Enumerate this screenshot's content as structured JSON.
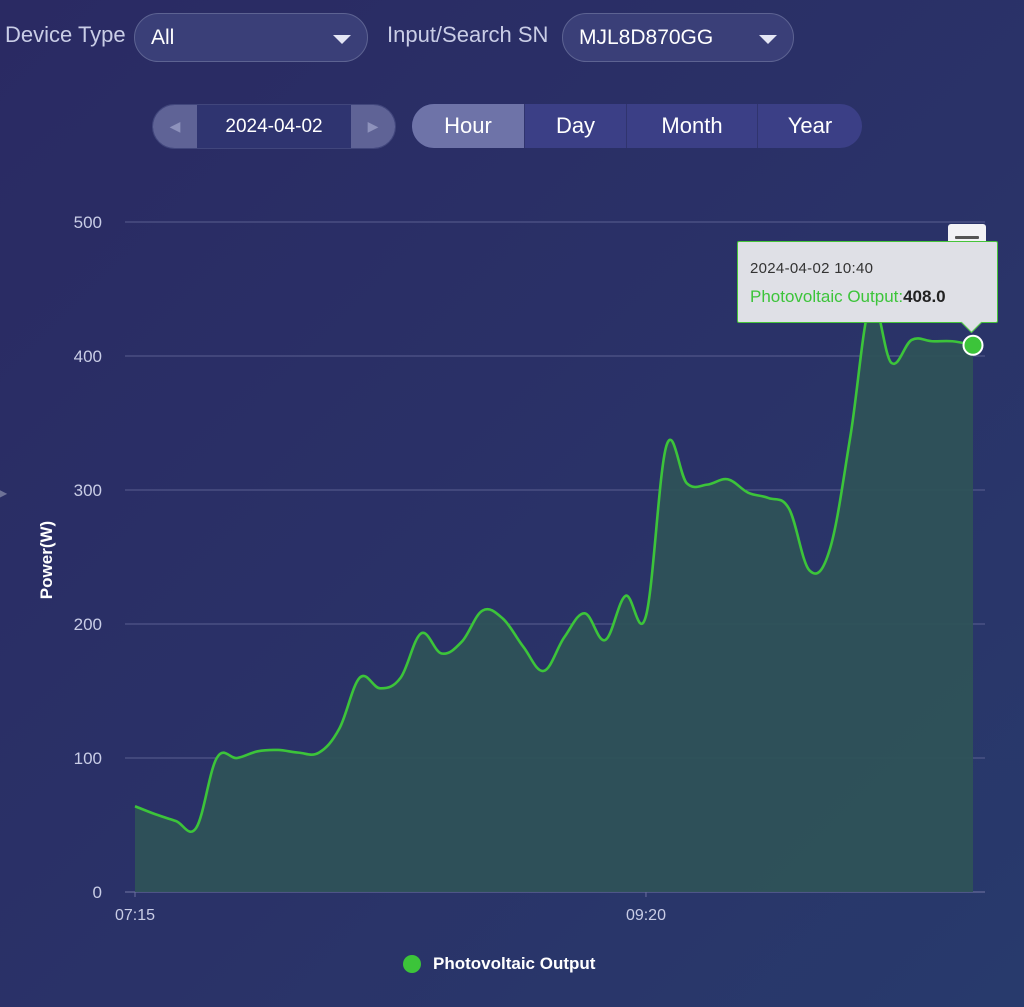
{
  "filters": {
    "device_type_label": "Device Type",
    "device_type_value": "All",
    "sn_label": "Input/Search SN",
    "sn_value": "MJL8D870GG"
  },
  "date_nav": {
    "date": "2024-04-02",
    "prev_icon": "step-backward-icon",
    "next_icon": "step-forward-icon"
  },
  "period_tabs": [
    {
      "label": "Hour",
      "active": true
    },
    {
      "label": "Day",
      "active": false
    },
    {
      "label": "Month",
      "active": false
    },
    {
      "label": "Year",
      "active": false
    }
  ],
  "tooltip": {
    "date": "2024-04-02 10:40",
    "series": "Photovoltaic Output:",
    "value": "408.0"
  },
  "colors": {
    "series": "#3cc43a",
    "area_fill": "#2e5259",
    "grid": "#6b6f9f",
    "axis_text": "#c9cde6"
  },
  "chart_data": {
    "type": "area",
    "title": "",
    "xlabel": "",
    "ylabel": "Power(W)",
    "ylim": [
      0,
      500
    ],
    "yticks": [
      0,
      100,
      200,
      300,
      400,
      500
    ],
    "xtick_labels": [
      "07:15",
      "09:20"
    ],
    "grid": true,
    "legend": "bottom-center",
    "series": [
      {
        "name": "Photovoltaic Output",
        "x": [
          "07:15",
          "07:20",
          "07:25",
          "07:30",
          "07:35",
          "07:40",
          "07:45",
          "07:50",
          "07:55",
          "08:00",
          "08:05",
          "08:10",
          "08:15",
          "08:20",
          "08:25",
          "08:30",
          "08:35",
          "08:40",
          "08:45",
          "08:50",
          "08:55",
          "09:00",
          "09:05",
          "09:10",
          "09:15",
          "09:20",
          "09:25",
          "09:30",
          "09:35",
          "09:40",
          "09:45",
          "09:50",
          "09:55",
          "10:00",
          "10:05",
          "10:10",
          "10:15",
          "10:20",
          "10:25",
          "10:30",
          "10:35",
          "10:40"
        ],
        "values": [
          64,
          58,
          53,
          48,
          100,
          100,
          105,
          106,
          104,
          104,
          122,
          160,
          152,
          160,
          193,
          178,
          187,
          210,
          204,
          183,
          165,
          190,
          208,
          188,
          221,
          206,
          333,
          305,
          304,
          308,
          298,
          294,
          286,
          240,
          256,
          340,
          440,
          395,
          412,
          411,
          411,
          408
        ]
      }
    ]
  },
  "legend": {
    "label": "Photovoltaic Output"
  }
}
